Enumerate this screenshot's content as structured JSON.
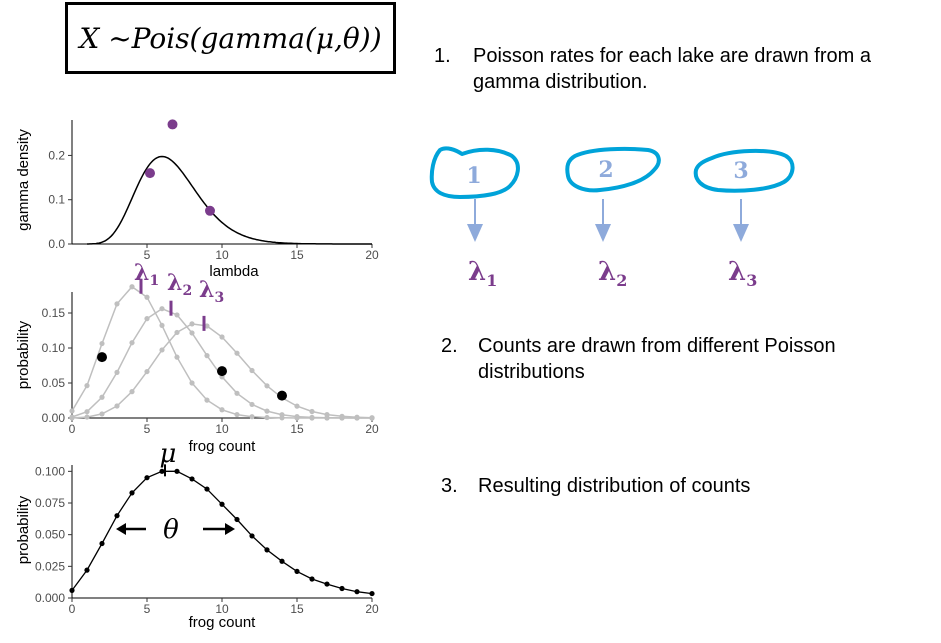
{
  "formula": "X ~Pois(gamma(μ,θ))",
  "steps": [
    {
      "num": "1.",
      "line1": "Poisson rates for each lake are drawn from a",
      "line2": "gamma distribution."
    },
    {
      "num": "2.",
      "line1": "Counts are drawn from different Poisson",
      "line2": "distributions"
    },
    {
      "num": "3.",
      "line1": "Resulting distribution of counts",
      "line2": ""
    }
  ],
  "lakes": [
    {
      "num": "1",
      "lambda": "λ",
      "sub": "1"
    },
    {
      "num": "2",
      "lambda": "λ",
      "sub": "2"
    },
    {
      "num": "3",
      "lambda": "λ",
      "sub": "3"
    }
  ],
  "annotations": {
    "mu": "μ",
    "theta": "θ"
  },
  "colors": {
    "purple": "#7b3c8c",
    "lake_outline": "#00a3d9",
    "lake_number": "#8eaadb",
    "arrow": "#8eaadb",
    "curve_gray": "#bfbfbf"
  },
  "chart_data": [
    {
      "type": "line",
      "xlabel": "lambda",
      "ylabel": "gamma density",
      "xlim": [
        0,
        20
      ],
      "ylim": [
        0,
        0.28
      ],
      "xticks": [
        5,
        10,
        15,
        20
      ],
      "yticks": [
        0.0,
        0.1,
        0.2
      ],
      "ytick_labels": [
        "0.0",
        "0.1",
        "0.2"
      ],
      "curve": {
        "shape": 10,
        "rate": 1.5,
        "x_from": 1,
        "x_to": 20
      },
      "points": [
        {
          "x": 5.2,
          "y": 0.16,
          "label": "λ",
          "sub": "1"
        },
        {
          "x": 6.7,
          "y": 0.27,
          "label": "λ",
          "sub": "2"
        },
        {
          "x": 9.2,
          "y": 0.075,
          "label": "λ",
          "sub": "3"
        }
      ]
    },
    {
      "type": "line",
      "xlabel": "frog count",
      "ylabel": "probability",
      "xlim": [
        0,
        20
      ],
      "ylim": [
        0,
        0.18
      ],
      "xticks": [
        0,
        5,
        10,
        15,
        20
      ],
      "yticks": [
        0.0,
        0.05,
        0.1,
        0.15
      ],
      "ytick_labels": [
        "0.00",
        "0.05",
        "0.10",
        "0.15"
      ],
      "series_lambdas": [
        4.6,
        6.6,
        8.8
      ],
      "highlight_points": [
        {
          "x": 2,
          "y": 0.087
        },
        {
          "x": 10,
          "y": 0.067
        },
        {
          "x": 14,
          "y": 0.032
        }
      ]
    },
    {
      "type": "line",
      "xlabel": "frog count",
      "ylabel": "probability",
      "xlim": [
        0,
        20
      ],
      "ylim": [
        0,
        0.105
      ],
      "xticks": [
        0,
        5,
        10,
        15,
        20
      ],
      "yticks": [
        0.0,
        0.025,
        0.05,
        0.075,
        0.1
      ],
      "ytick_labels": [
        "0.000",
        "0.025",
        "0.050",
        "0.075",
        "0.100"
      ],
      "x": [
        0,
        1,
        2,
        3,
        4,
        5,
        6,
        7,
        8,
        9,
        10,
        11,
        12,
        13,
        14,
        15,
        16,
        17,
        18,
        19,
        20
      ],
      "y": [
        0.006,
        0.022,
        0.043,
        0.065,
        0.083,
        0.095,
        0.1,
        0.1,
        0.094,
        0.086,
        0.074,
        0.062,
        0.049,
        0.038,
        0.029,
        0.021,
        0.015,
        0.011,
        0.0075,
        0.005,
        0.0035
      ]
    }
  ]
}
